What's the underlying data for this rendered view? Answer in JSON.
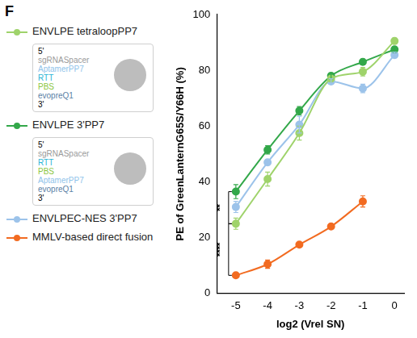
{
  "chart_data": {
    "type": "line",
    "panel": "F",
    "x_label": "log2 (Vrel SN)",
    "y_label": "PE of GreenLanternG65S/Y66H (%)",
    "x": [
      -5,
      -4,
      -3,
      -2,
      -1,
      0
    ],
    "xlim": [
      -5.6,
      0.3
    ],
    "xticks": [
      -5,
      -4,
      -3,
      -2,
      -1,
      0
    ],
    "ylim": [
      0,
      100
    ],
    "yticks": [
      0,
      20,
      40,
      60,
      80,
      100
    ],
    "grid": false,
    "legend": "left",
    "marker": "circle",
    "line_style": "solid",
    "series": [
      {
        "name": "ENVLPE tetraloopPP7",
        "color": "#9fd36b",
        "values": [
          25,
          41,
          57.5,
          77,
          79.5,
          90.5
        ],
        "errors": [
          2,
          2.5,
          2.5,
          1,
          1.5,
          1
        ]
      },
      {
        "name": "ENVLPE 3'PP7",
        "color": "#33a84a",
        "values": [
          36.5,
          51.5,
          65.5,
          78,
          83,
          87.5
        ],
        "errors": [
          2.5,
          1.5,
          1.5,
          1,
          1,
          1
        ]
      },
      {
        "name": "ENVLPEC-NES 3'PP7",
        "color": "#9cc3ea",
        "values": [
          31,
          47,
          60.5,
          76,
          73.5,
          85.5
        ],
        "errors": [
          2,
          1,
          3,
          1,
          1.5,
          1
        ]
      },
      {
        "name": "MMLV-based direct fusion",
        "color": "#f26b21",
        "values": [
          6.5,
          10.5,
          17.5,
          24,
          33,
          null
        ],
        "errors": [
          0.5,
          1.5,
          0.5,
          0.5,
          2,
          null
        ]
      }
    ],
    "significance": [
      {
        "label": "**",
        "from": 36.5,
        "to": 25
      },
      {
        "label": "****",
        "from": 25,
        "to": 6.5
      }
    ],
    "schematics": [
      {
        "series": "ENVLPE tetraloopPP7",
        "labels": [
          {
            "text": "5'",
            "color": "#000000"
          },
          {
            "text": "sgRNASpacer",
            "color": "#9a9a9a"
          },
          {
            "text": "AptamerPP7",
            "color": "#8fc3ea"
          },
          {
            "text": "RTT",
            "color": "#29b5d6"
          },
          {
            "text": "PBS",
            "color": "#8cc63f"
          },
          {
            "text": "evopreQ1",
            "color": "#5b7fa6"
          },
          {
            "text": "3'",
            "color": "#000000"
          }
        ]
      },
      {
        "series": "ENVLPE 3'PP7",
        "labels": [
          {
            "text": "5'",
            "color": "#000000"
          },
          {
            "text": "sgRNASpacer",
            "color": "#9a9a9a"
          },
          {
            "text": "RTT",
            "color": "#29b5d6"
          },
          {
            "text": "PBS",
            "color": "#8cc63f"
          },
          {
            "text": "AptamerPP7",
            "color": "#8fc3ea"
          },
          {
            "text": "evopreQ1",
            "color": "#5b7fa6"
          },
          {
            "text": "3'",
            "color": "#000000"
          }
        ]
      }
    ]
  }
}
